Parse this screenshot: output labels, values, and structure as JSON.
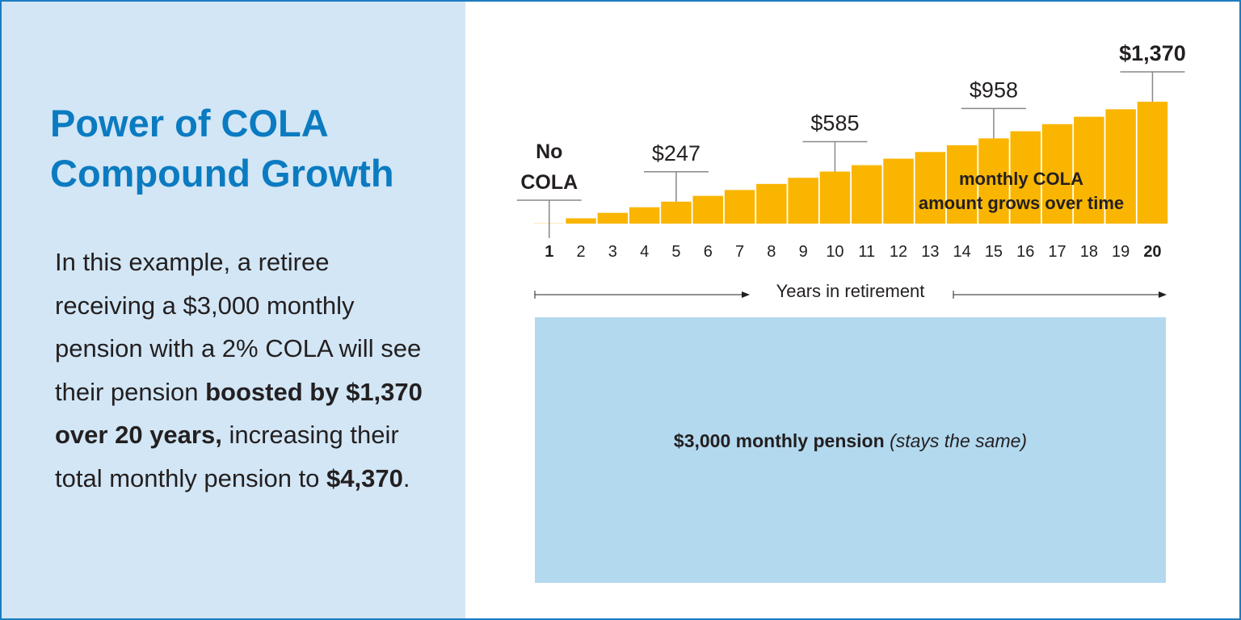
{
  "title": {
    "line1": "Power of COLA",
    "line2": "Compound Growth"
  },
  "description": {
    "part1": "In this example, a retiree receiving a $3,000 monthly pension with a 2% COLA will see their pension ",
    "bold1": "boosted by $1,370 over 20 years,",
    "part2": " increasing their total monthly pension to ",
    "bold2": "$4,370",
    "part3": "."
  },
  "base_box": {
    "bold": "$3,000 monthly pension",
    "italic": "(stays the same)"
  },
  "colors": {
    "bar": "#f9b500",
    "title": "#0b7bc1",
    "left_panel": "#d2e6f5",
    "base_box": "#b3d9ef",
    "border": "#1b7cc1"
  },
  "chart_data": {
    "type": "bar",
    "xlabel": "Years in retirement",
    "categories": [
      "1",
      "2",
      "3",
      "4",
      "5",
      "6",
      "7",
      "8",
      "9",
      "10",
      "11",
      "12",
      "13",
      "14",
      "15",
      "16",
      "17",
      "18",
      "19",
      "20"
    ],
    "values": [
      0,
      60,
      121,
      184,
      247,
      312,
      378,
      446,
      515,
      585,
      657,
      730,
      805,
      881,
      958,
      1038,
      1118,
      1201,
      1285,
      1370
    ],
    "bold_ticks": [
      "1",
      "20"
    ],
    "annotations": [
      {
        "category": "1",
        "lines": [
          "No",
          "COLA"
        ],
        "bold": true
      },
      {
        "category": "5",
        "lines": [
          "$247"
        ],
        "bold": false
      },
      {
        "category": "10",
        "lines": [
          "$585"
        ],
        "bold": false
      },
      {
        "category": "15",
        "lines": [
          "$958"
        ],
        "bold": false
      },
      {
        "category": "20",
        "lines": [
          "$1,370"
        ],
        "bold": true
      }
    ],
    "inner_label": [
      "monthly COLA",
      "amount grows over time"
    ],
    "ylim": [
      0,
      1370
    ]
  }
}
